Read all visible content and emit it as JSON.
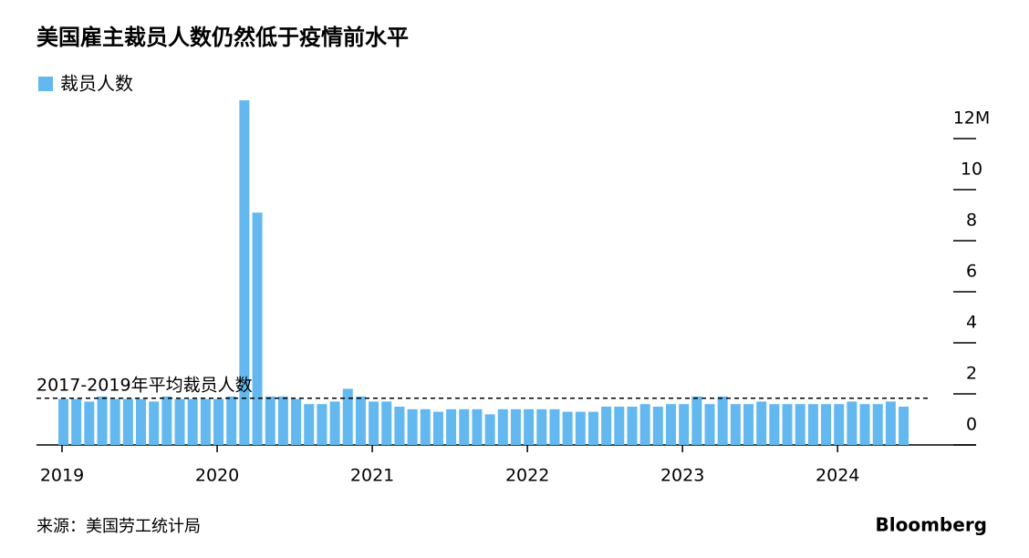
{
  "chart_data": {
    "type": "bar",
    "title": "美国雇主裁员人数仍然低于疫情前水平",
    "series": [
      {
        "name": "裁员人数",
        "color": "#63b8f0",
        "values": [
          1.8,
          1.8,
          1.7,
          1.9,
          1.8,
          1.8,
          1.8,
          1.7,
          1.9,
          1.8,
          1.8,
          1.8,
          1.8,
          1.9,
          13.5,
          9.1,
          1.9,
          1.9,
          1.8,
          1.6,
          1.6,
          1.7,
          2.2,
          1.9,
          1.7,
          1.7,
          1.5,
          1.4,
          1.4,
          1.3,
          1.4,
          1.4,
          1.4,
          1.2,
          1.4,
          1.4,
          1.4,
          1.4,
          1.4,
          1.3,
          1.3,
          1.3,
          1.5,
          1.5,
          1.5,
          1.6,
          1.5,
          1.6,
          1.6,
          1.9,
          1.6,
          1.9,
          1.6,
          1.6,
          1.7,
          1.6,
          1.6,
          1.6,
          1.6,
          1.6,
          1.6,
          1.7,
          1.6,
          1.6,
          1.7,
          1.5
        ]
      }
    ],
    "categories": [
      "2019",
      null,
      null,
      null,
      null,
      null,
      null,
      null,
      null,
      null,
      null,
      null,
      "2020",
      null,
      null,
      null,
      null,
      null,
      null,
      null,
      null,
      null,
      null,
      null,
      "2021",
      null,
      null,
      null,
      null,
      null,
      null,
      null,
      null,
      null,
      null,
      null,
      "2022",
      null,
      null,
      null,
      null,
      null,
      null,
      null,
      null,
      null,
      null,
      null,
      "2023",
      null,
      null,
      null,
      null,
      null,
      null,
      null,
      null,
      null,
      null,
      null,
      "2024",
      null,
      null,
      null,
      null,
      null
    ],
    "reference_line": {
      "label": "2017-2019年平均裁员人数",
      "value": 1.83
    },
    "ylim": [
      0,
      13.5
    ],
    "yticks": [
      0,
      2,
      4,
      6,
      8,
      10,
      {
        "value": 12,
        "label": "12M"
      }
    ],
    "source": "来源：美国劳工统计局",
    "brand": "Bloomberg"
  }
}
